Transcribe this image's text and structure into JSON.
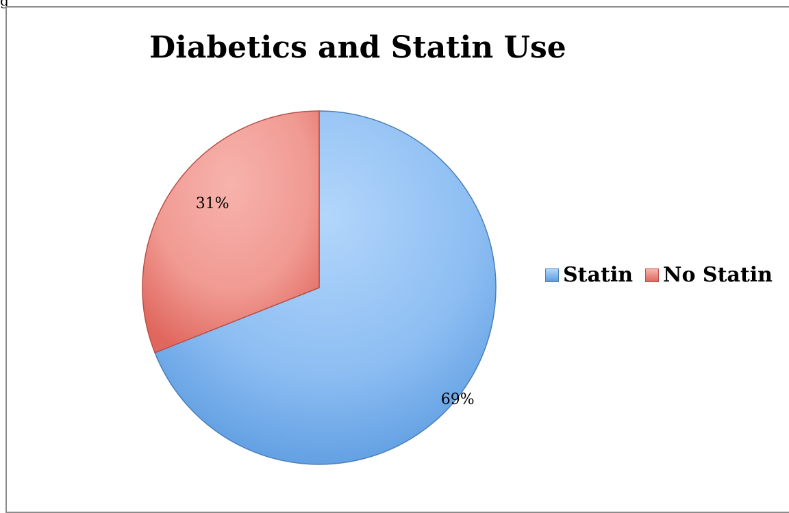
{
  "page_label": "g",
  "chart_data": {
    "type": "pie",
    "title": "Diabetics and Statin Use",
    "categories": [
      "Statin",
      "No Statin"
    ],
    "values": [
      69,
      31
    ],
    "data_labels": [
      "69%",
      "31%"
    ],
    "legend_placement": "right",
    "colors": {
      "Statin": "#78b1ef",
      "No Statin": "#ef857c"
    }
  }
}
